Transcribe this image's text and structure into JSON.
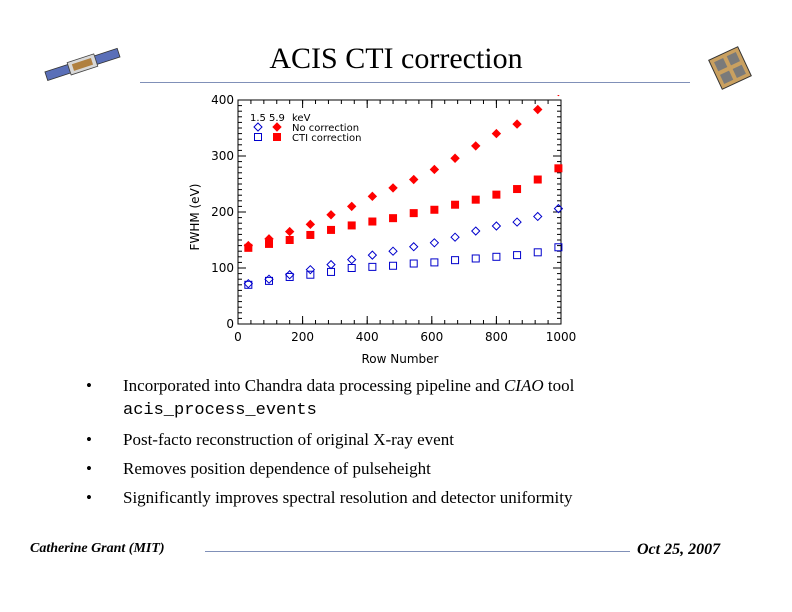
{
  "slide": {
    "title": "ACIS CTI correction",
    "footer_left": "Catherine Grant (MIT)",
    "footer_right": "Oct 25, 2007"
  },
  "bullets": [
    {
      "pre": "Incorporated into Chandra data processing pipeline and ",
      "em": "CIAO",
      "post": " tool",
      "code": "acis_process_events"
    },
    {
      "text": "Post-facto reconstruction of original X-ray event"
    },
    {
      "text": "Removes position dependence of pulseheight"
    },
    {
      "text": "Significantly improves spectral resolution and detector uniformity"
    }
  ],
  "bullet_glyph": "•",
  "chart_data": {
    "type": "scatter",
    "xlabel": "Row Number",
    "ylabel": "FWHM (eV)",
    "xlim": [
      0,
      1000
    ],
    "ylim": [
      0,
      400
    ],
    "xticks": [
      0,
      200,
      400,
      600,
      800,
      1000
    ],
    "yticks": [
      0,
      100,
      200,
      300,
      400
    ],
    "legend_header": [
      "1.5",
      "5.9",
      "keV"
    ],
    "legend_placement": "top-left",
    "x": [
      32,
      96,
      160,
      224,
      288,
      352,
      416,
      480,
      544,
      608,
      672,
      736,
      800,
      864,
      928,
      992
    ],
    "series": [
      {
        "name": "No correction",
        "energy": "5.9",
        "marker": "diamond",
        "filled": true,
        "color": "#ff0000",
        "values": [
          140,
          152,
          165,
          178,
          195,
          210,
          228,
          243,
          258,
          276,
          296,
          318,
          340,
          357,
          383,
          415
        ]
      },
      {
        "name": "CTI correction",
        "energy": "5.9",
        "marker": "square",
        "filled": true,
        "color": "#ff0000",
        "values": [
          136,
          143,
          150,
          159,
          168,
          176,
          183,
          189,
          198,
          204,
          213,
          222,
          231,
          241,
          258,
          278
        ]
      },
      {
        "name": "No correction",
        "energy": "1.5",
        "marker": "diamond",
        "filled": false,
        "color": "#0000cc",
        "values": [
          72,
          80,
          88,
          97,
          106,
          115,
          123,
          130,
          138,
          145,
          155,
          166,
          175,
          182,
          192,
          206
        ]
      },
      {
        "name": "CTI correction",
        "energy": "1.5",
        "marker": "square",
        "filled": false,
        "color": "#0000cc",
        "values": [
          70,
          77,
          84,
          88,
          93,
          100,
          102,
          104,
          108,
          110,
          114,
          117,
          120,
          123,
          128,
          137
        ]
      }
    ]
  }
}
